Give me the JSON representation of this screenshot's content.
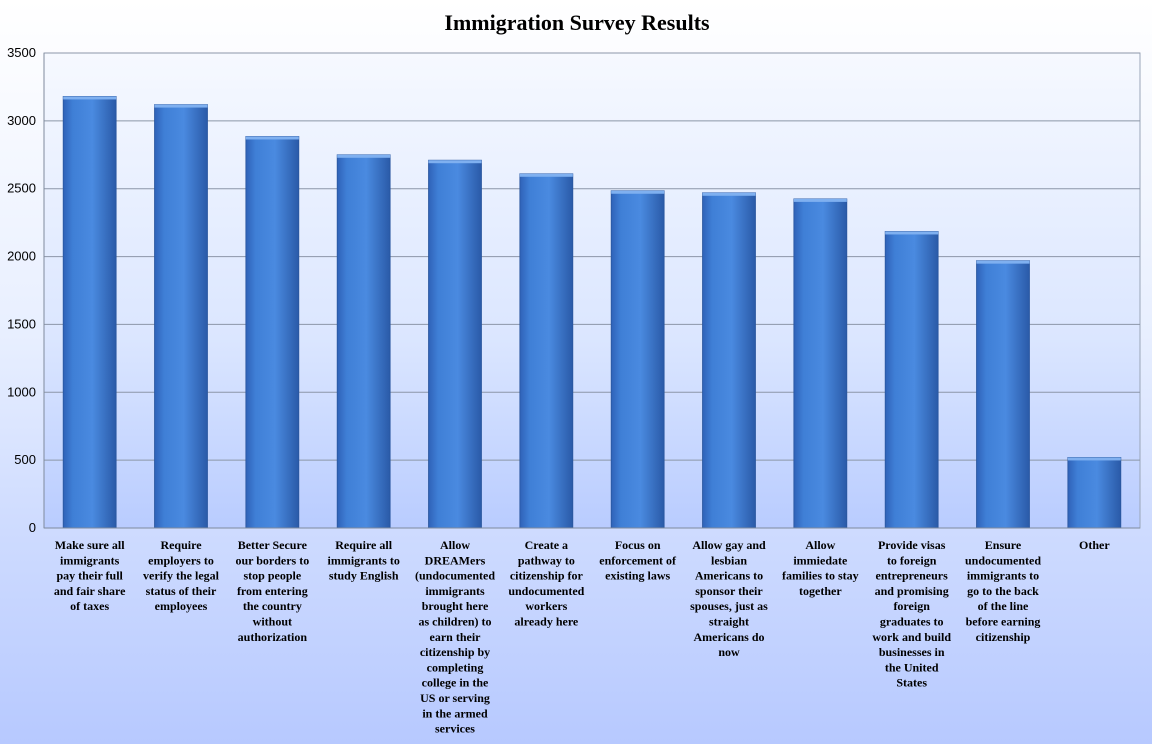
{
  "chart_data": {
    "type": "bar",
    "title": "Immigration Survey Results",
    "xlabel": "",
    "ylabel": "",
    "ylim": [
      0,
      3500
    ],
    "yticks": [
      0,
      500,
      1000,
      1500,
      2000,
      2500,
      3000,
      3500
    ],
    "grid": true,
    "legend": "none",
    "bar_color": "#3f7fd6",
    "categories": [
      [
        "Make sure all",
        "immigrants",
        "pay their full",
        "and fair share",
        "of taxes"
      ],
      [
        "Require",
        "employers to",
        "verify the legal",
        "status of their",
        "employees"
      ],
      [
        "Better Secure",
        "our borders to",
        "stop people",
        "from entering",
        "the country",
        "without",
        "authorization"
      ],
      [
        "Require all",
        "immigrants to",
        "study English"
      ],
      [
        "Allow",
        "DREAMers",
        "(undocumented",
        "immigrants",
        "brought here",
        "as children) to",
        "earn their",
        "citizenship by",
        "completing",
        "college in the",
        "US or serving",
        "in the armed",
        "services"
      ],
      [
        "Create a",
        "pathway to",
        "citizenship for",
        "undocumented",
        "workers",
        "already here"
      ],
      [
        "Focus on",
        "enforcement of",
        "existing laws"
      ],
      [
        "Allow gay and",
        "lesbian",
        "Americans to",
        "sponsor their",
        "spouses, just as",
        "straight",
        "Americans do",
        "now"
      ],
      [
        "Allow",
        "immiedate",
        "families to stay",
        "together"
      ],
      [
        "Provide visas",
        "to foreign",
        "entrepreneurs",
        "and promising",
        "foreign",
        "graduates to",
        "work and build",
        "businesses in",
        "the United",
        "States"
      ],
      [
        "Ensure",
        "undocumented",
        "immigrants to",
        "go to the back",
        "of the line",
        "before earning",
        "citizenship"
      ],
      [
        "Other"
      ]
    ],
    "values": [
      3180,
      3120,
      2885,
      2750,
      2710,
      2610,
      2485,
      2470,
      2425,
      2185,
      1970,
      520
    ]
  }
}
